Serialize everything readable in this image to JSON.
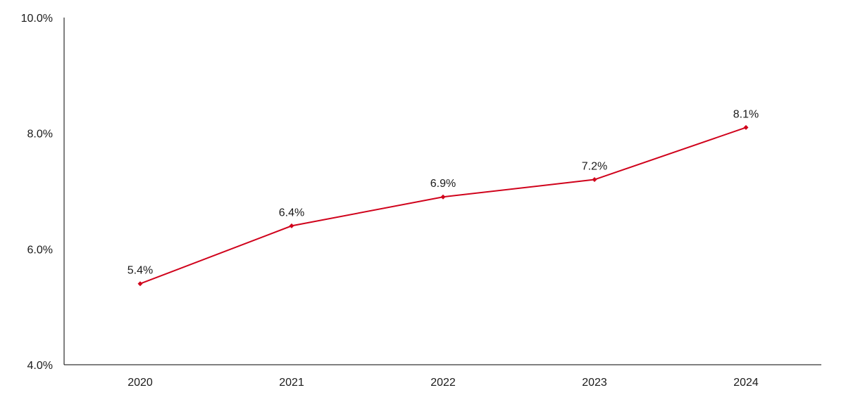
{
  "chart_data": {
    "type": "line",
    "categories": [
      "2020",
      "2021",
      "2022",
      "2023",
      "2024"
    ],
    "series": [
      {
        "values": [
          5.4,
          6.4,
          6.9,
          7.2,
          8.1
        ],
        "data_labels": [
          "5.4%",
          "6.4%",
          "6.9%",
          "7.2%",
          "8.1%"
        ]
      }
    ],
    "ylim": [
      4.0,
      10.0
    ],
    "yticks": [
      4.0,
      6.0,
      8.0,
      10.0
    ],
    "ytick_labels": [
      "4.0%",
      "6.0%",
      "8.0%",
      "10.0%"
    ],
    "title": "",
    "xlabel": "",
    "ylabel": "",
    "grid": false,
    "legend": "none",
    "colors": {
      "series": "#d0021b",
      "axis": "#000000",
      "text": "#1a1a1a"
    }
  }
}
